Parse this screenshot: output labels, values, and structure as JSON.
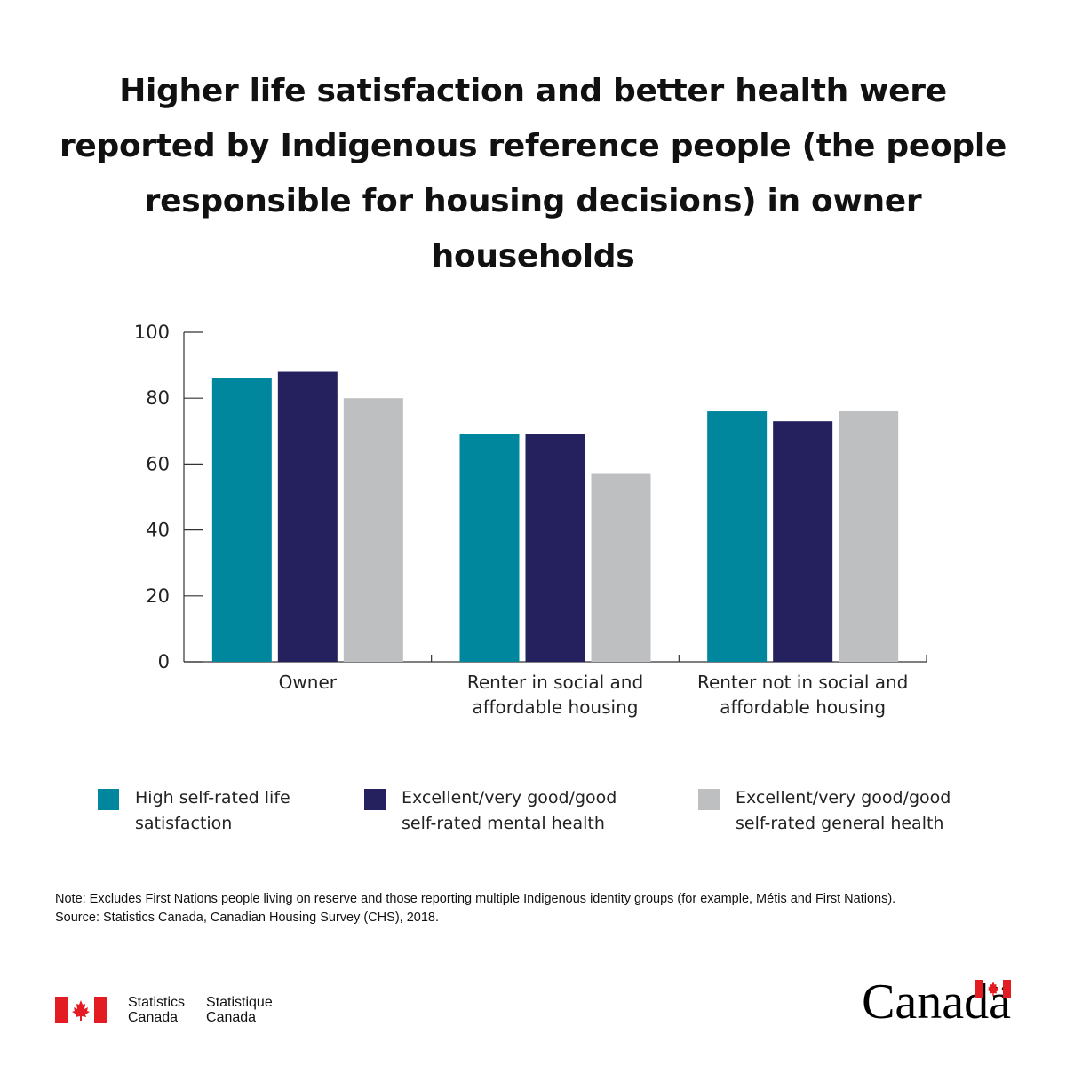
{
  "chart_data": {
    "type": "bar",
    "title": "Higher life satisfaction and better health were reported by Indigenous reference people (the people responsible for housing decisions) in owner households",
    "categories": [
      "Owner",
      "Renter in social and affordable housing",
      "Renter not in social and affordable housing"
    ],
    "category_lines": [
      [
        "Owner"
      ],
      [
        "Renter in social and",
        "affordable housing"
      ],
      [
        "Renter not in social and",
        "affordable housing"
      ]
    ],
    "series": [
      {
        "name": "High self-rated life satisfaction",
        "color": "#00879e",
        "values": [
          86,
          69,
          76
        ]
      },
      {
        "name": "Excellent/very good/good self-rated mental health",
        "color": "#25215e",
        "values": [
          88,
          69,
          73
        ]
      },
      {
        "name": "Excellent/very good/good self-rated general health",
        "color": "#bebfc1",
        "values": [
          80,
          57,
          76
        ]
      }
    ],
    "ylim": [
      0,
      100
    ],
    "yticks": [
      0,
      20,
      40,
      60,
      80,
      100
    ],
    "xlabel": "",
    "ylabel": "",
    "grid": false,
    "legend_position": "bottom"
  },
  "legend": [
    {
      "label": "High self-rated life\nsatisfaction",
      "color": "#00879e"
    },
    {
      "label": "Excellent/very good/good\nself-rated mental health",
      "color": "#25215e"
    },
    {
      "label": "Excellent/very good/good\nself-rated general health",
      "color": "#bebfc1"
    }
  ],
  "note": {
    "line1": "Note: Excludes First Nations people living on reserve and those reporting multiple Indigenous identity groups (for example, Métis and First Nations).",
    "line2": "Source: Statistics Canada, Canadian Housing Survey (CHS), 2018."
  },
  "footer": {
    "dept_en": "Statistics\nCanada",
    "dept_fr": "Statistique\nCanada",
    "wordmark": "Canadä",
    "flag_color": "#e31b23"
  }
}
